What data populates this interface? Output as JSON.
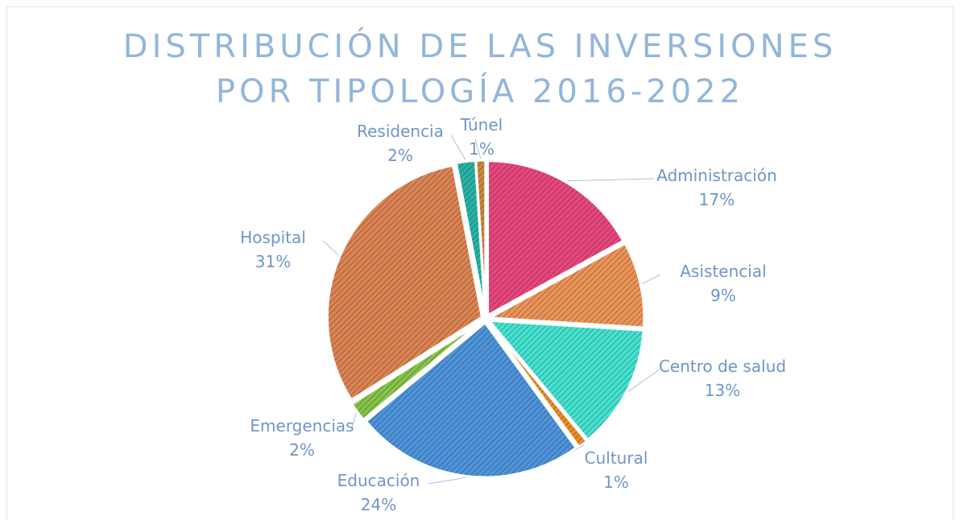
{
  "chart_data": {
    "type": "pie",
    "title": "DISTRIBUCIÓN DE LAS INVERSIONES POR TIPOLOGÍA 2016-2022",
    "categories": [
      "Administración",
      "Asistencial",
      "Centro de salud",
      "Cultural",
      "Educación",
      "Emergencias",
      "Hospital",
      "Residencia",
      "Túnel"
    ],
    "values": [
      17,
      9,
      13,
      1,
      24,
      2,
      31,
      2,
      1
    ],
    "value_labels": [
      "17%",
      "9%",
      "13%",
      "1%",
      "24%",
      "2%",
      "31%",
      "2%",
      "1%"
    ],
    "colors": [
      "#e8467c",
      "#ec9457",
      "#43e3d1",
      "#f08a24",
      "#4d94dc",
      "#86c449",
      "#dc8452",
      "#27b3a6",
      "#c98a3c"
    ]
  }
}
